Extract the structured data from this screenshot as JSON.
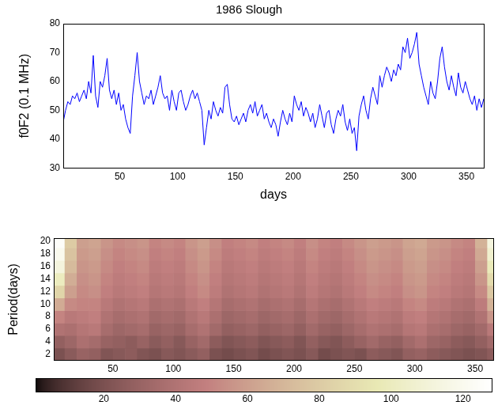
{
  "chart_data": [
    {
      "type": "line",
      "title": "1986 Slough",
      "x_label": "days",
      "y_label": "f0F2 (0.1 MHz)",
      "color": "#0000ff",
      "grid": false,
      "xlim": [
        1,
        365
      ],
      "xticks": [
        50,
        100,
        150,
        200,
        250,
        300,
        350
      ],
      "ylim": [
        30,
        80
      ],
      "yticks": [
        30,
        40,
        50,
        60,
        70,
        80
      ],
      "x": [
        1,
        3,
        5,
        7,
        9,
        11,
        13,
        15,
        17,
        19,
        21,
        23,
        25,
        27,
        29,
        31,
        33,
        35,
        37,
        39,
        41,
        43,
        45,
        47,
        49,
        51,
        53,
        55,
        57,
        59,
        61,
        63,
        65,
        67,
        69,
        71,
        73,
        75,
        77,
        79,
        81,
        83,
        85,
        87,
        89,
        91,
        93,
        95,
        97,
        99,
        101,
        103,
        105,
        107,
        109,
        111,
        113,
        115,
        117,
        119,
        121,
        123,
        125,
        127,
        129,
        131,
        133,
        135,
        137,
        139,
        141,
        143,
        145,
        147,
        149,
        151,
        153,
        155,
        157,
        159,
        161,
        163,
        165,
        167,
        169,
        171,
        173,
        175,
        177,
        179,
        181,
        183,
        185,
        187,
        189,
        191,
        193,
        195,
        197,
        199,
        201,
        203,
        205,
        207,
        209,
        211,
        213,
        215,
        217,
        219,
        221,
        223,
        225,
        227,
        229,
        231,
        233,
        235,
        237,
        239,
        241,
        243,
        245,
        247,
        249,
        251,
        253,
        255,
        257,
        259,
        261,
        263,
        265,
        267,
        269,
        271,
        273,
        275,
        277,
        279,
        281,
        283,
        285,
        287,
        289,
        291,
        293,
        295,
        297,
        299,
        301,
        303,
        305,
        307,
        309,
        311,
        313,
        315,
        317,
        319,
        321,
        323,
        325,
        327,
        329,
        331,
        333,
        335,
        337,
        339,
        341,
        343,
        345,
        347,
        349,
        351,
        353,
        355,
        357,
        359,
        361,
        363,
        365
      ],
      "values": [
        46,
        50,
        53,
        52,
        55,
        54,
        56,
        53,
        55,
        57,
        54,
        60,
        56,
        69,
        55,
        51,
        60,
        58,
        62,
        68,
        57,
        54,
        57,
        52,
        56,
        50,
        52,
        47,
        44,
        42,
        55,
        62,
        70,
        60,
        56,
        52,
        55,
        54,
        57,
        52,
        55,
        58,
        62,
        56,
        54,
        55,
        50,
        57,
        53,
        50,
        56,
        57,
        53,
        50,
        52,
        55,
        57,
        54,
        56,
        53,
        50,
        38,
        44,
        50,
        47,
        53,
        50,
        48,
        51,
        49,
        58,
        59,
        52,
        47,
        46,
        48,
        45,
        47,
        49,
        46,
        50,
        52,
        49,
        53,
        48,
        50,
        52,
        47,
        49,
        46,
        44,
        47,
        45,
        41,
        46,
        50,
        47,
        45,
        49,
        46,
        55,
        52,
        50,
        53,
        48,
        51,
        49,
        46,
        49,
        44,
        47,
        52,
        48,
        44,
        49,
        50,
        45,
        42,
        47,
        50,
        48,
        52,
        46,
        43,
        47,
        42,
        44,
        36,
        48,
        52,
        55,
        50,
        47,
        54,
        58,
        55,
        52,
        62,
        58,
        62,
        65,
        63,
        60,
        64,
        62,
        66,
        64,
        72,
        70,
        75,
        68,
        70,
        73,
        77,
        66,
        62,
        58,
        55,
        52,
        60,
        56,
        54,
        60,
        68,
        72,
        65,
        60,
        57,
        62,
        58,
        55,
        63,
        58,
        56,
        60,
        57,
        54,
        52,
        55,
        50,
        54,
        51,
        54
      ]
    },
    {
      "type": "heatmap",
      "y_label": "Period(days)",
      "grid": false,
      "xlim": [
        1,
        365
      ],
      "xticks": [
        50,
        100,
        150,
        200,
        250,
        300,
        350
      ],
      "ylim": [
        1,
        20.5
      ],
      "yticks": [
        2,
        4,
        6,
        8,
        10,
        12,
        14,
        16,
        18,
        20
      ],
      "color_range": [
        1,
        128
      ],
      "color_ticks": [
        20,
        40,
        60,
        80,
        100,
        120
      ],
      "x": [
        5,
        15,
        25,
        35,
        45,
        55,
        65,
        75,
        85,
        95,
        105,
        115,
        125,
        135,
        145,
        155,
        165,
        175,
        185,
        195,
        205,
        215,
        225,
        235,
        245,
        255,
        265,
        275,
        285,
        295,
        305,
        315,
        325,
        335,
        345,
        355,
        365
      ],
      "y": [
        2,
        4,
        6,
        8,
        10,
        12,
        14,
        16,
        18,
        20
      ],
      "z": [
        [
          20,
          25,
          30,
          28,
          22,
          24,
          26,
          22,
          20,
          24,
          22,
          25,
          28,
          20,
          18,
          20,
          22,
          18,
          20,
          22,
          20,
          24,
          18,
          20,
          22,
          20,
          26,
          24,
          22,
          28,
          30,
          26,
          24,
          22,
          20,
          22,
          26
        ],
        [
          28,
          32,
          38,
          35,
          30,
          28,
          26,
          30,
          25,
          28,
          24,
          30,
          34,
          26,
          22,
          24,
          26,
          22,
          24,
          26,
          22,
          28,
          24,
          22,
          26,
          30,
          34,
          30,
          28,
          34,
          38,
          32,
          30,
          26,
          24,
          28,
          34
        ],
        [
          40,
          38,
          42,
          44,
          36,
          32,
          34,
          36,
          30,
          32,
          30,
          36,
          40,
          34,
          28,
          30,
          32,
          28,
          30,
          32,
          28,
          34,
          30,
          28,
          32,
          36,
          40,
          38,
          36,
          42,
          44,
          38,
          36,
          32,
          30,
          34,
          44
        ],
        [
          50,
          44,
          46,
          48,
          40,
          36,
          38,
          40,
          34,
          36,
          34,
          40,
          44,
          38,
          32,
          34,
          36,
          32,
          34,
          36,
          32,
          38,
          34,
          32,
          36,
          40,
          44,
          42,
          40,
          46,
          48,
          42,
          40,
          36,
          34,
          40,
          56
        ],
        [
          65,
          52,
          50,
          50,
          44,
          40,
          42,
          44,
          38,
          40,
          38,
          44,
          48,
          42,
          36,
          38,
          40,
          36,
          38,
          40,
          36,
          42,
          38,
          36,
          40,
          44,
          48,
          46,
          44,
          50,
          52,
          46,
          44,
          40,
          38,
          46,
          68
        ],
        [
          85,
          60,
          52,
          54,
          48,
          44,
          46,
          48,
          42,
          44,
          42,
          48,
          52,
          46,
          40,
          42,
          44,
          40,
          42,
          44,
          40,
          46,
          42,
          40,
          44,
          48,
          52,
          50,
          48,
          54,
          56,
          50,
          48,
          44,
          42,
          52,
          78
        ],
        [
          100,
          66,
          54,
          56,
          50,
          46,
          48,
          50,
          44,
          46,
          44,
          50,
          54,
          48,
          42,
          44,
          46,
          42,
          44,
          46,
          42,
          48,
          44,
          42,
          46,
          50,
          54,
          52,
          50,
          56,
          58,
          52,
          50,
          46,
          44,
          56,
          88
        ],
        [
          112,
          72,
          56,
          58,
          52,
          48,
          50,
          52,
          46,
          48,
          46,
          52,
          56,
          50,
          44,
          46,
          48,
          44,
          46,
          48,
          44,
          50,
          46,
          44,
          48,
          52,
          56,
          54,
          52,
          58,
          60,
          54,
          52,
          48,
          46,
          60,
          98
        ],
        [
          120,
          76,
          58,
          60,
          54,
          50,
          52,
          54,
          48,
          50,
          48,
          54,
          58,
          52,
          46,
          48,
          50,
          46,
          48,
          50,
          46,
          52,
          48,
          46,
          50,
          54,
          58,
          56,
          54,
          60,
          62,
          56,
          54,
          50,
          48,
          64,
          106
        ],
        [
          125,
          80,
          60,
          62,
          56,
          52,
          54,
          56,
          50,
          52,
          50,
          56,
          60,
          54,
          48,
          50,
          52,
          48,
          50,
          52,
          48,
          54,
          50,
          48,
          52,
          56,
          60,
          58,
          56,
          62,
          64,
          58,
          56,
          52,
          50,
          68,
          112
        ]
      ]
    }
  ]
}
